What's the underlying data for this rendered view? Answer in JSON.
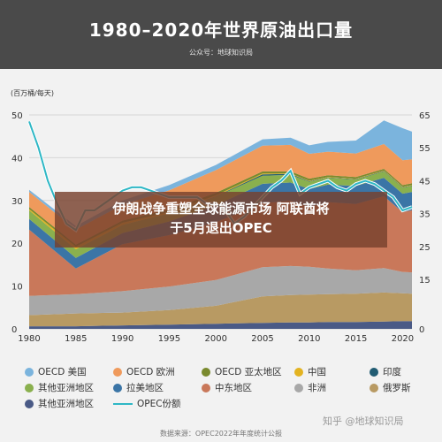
{
  "header": {
    "title": "1980–2020年世界原油出口量",
    "subtitle": "公众号：地球知识局"
  },
  "banner": {
    "line1": "伊朗战争重塑全球能源市场 阿联酋将",
    "line2": "于5月退出OPEC"
  },
  "footer": {
    "source": "数据来源：OPEC2022年年度统计公报",
    "watermark": "知乎 @地球知识局"
  },
  "chart_data": {
    "type": "area",
    "title": "1980–2020年世界原油出口量",
    "ylabel": "(百万桶/每天)",
    "ylim": [
      0,
      50
    ],
    "y2lim": [
      0,
      65
    ],
    "xlim": [
      1980,
      2021
    ],
    "yticks": [
      0,
      10,
      20,
      30,
      40,
      50
    ],
    "y2ticks": [
      0,
      15,
      25,
      35,
      45,
      55,
      65
    ],
    "xticks": [
      1980,
      1985,
      1990,
      1995,
      2000,
      2005,
      2010,
      2015,
      2020
    ],
    "x": [
      1980,
      1985,
      1990,
      1995,
      2000,
      2005,
      2008,
      2010,
      2012,
      2015,
      2018,
      2020,
      2021
    ],
    "series": [
      {
        "name": "其他亚洲地区",
        "color": "#4a5a86",
        "values": [
          0.6,
          0.6,
          0.8,
          1.0,
          1.2,
          1.4,
          1.5,
          1.5,
          1.6,
          1.6,
          1.7,
          1.8,
          1.8
        ]
      },
      {
        "name": "俄罗斯",
        "color": "#b89a63",
        "values": [
          2.6,
          3.0,
          3.0,
          3.4,
          4.2,
          6.2,
          6.4,
          6.5,
          6.5,
          6.6,
          6.8,
          6.5,
          6.4
        ]
      },
      {
        "name": "非洲",
        "color": "#a8a8a8",
        "values": [
          4.5,
          4.5,
          5.0,
          5.5,
          6.0,
          6.8,
          6.8,
          6.5,
          6.0,
          5.5,
          5.7,
          5.0,
          5.0
        ]
      },
      {
        "name": "中东地区",
        "color": "#c9785a",
        "values": [
          15.5,
          6.0,
          11.0,
          12.0,
          13.5,
          15.0,
          15.2,
          14.0,
          15.5,
          15.5,
          16.8,
          14.0,
          14.5
        ]
      },
      {
        "name": "拉美地区",
        "color": "#3b75a6",
        "values": [
          2.5,
          2.5,
          2.6,
          3.2,
          4.0,
          4.5,
          4.3,
          4.2,
          4.1,
          4.2,
          4.3,
          4.3,
          4.3
        ]
      },
      {
        "name": "其他亚洲地区（东南亚）",
        "color": "#8ab04e",
        "values": [
          2.0,
          2.0,
          1.9,
          1.9,
          2.0,
          1.9,
          1.8,
          1.7,
          1.6,
          1.5,
          1.5,
          1.4,
          1.4
        ]
      },
      {
        "name": "印度",
        "color": "#215c73",
        "values": [
          0.0,
          0.0,
          0.0,
          0.0,
          0.1,
          0.3,
          0.2,
          0.1,
          0.1,
          0.1,
          0.1,
          0.1,
          0.1
        ]
      },
      {
        "name": "中国",
        "color": "#e3b321",
        "values": [
          0.3,
          0.6,
          0.5,
          0.3,
          0.2,
          0.2,
          0.1,
          0.1,
          0.1,
          0.1,
          0.1,
          0.1,
          0.1
        ]
      },
      {
        "name": "OECD 亚太地区",
        "color": "#7a8a2e",
        "values": [
          0.5,
          0.5,
          0.5,
          0.6,
          0.6,
          0.5,
          0.5,
          0.5,
          0.4,
          0.4,
          0.4,
          0.4,
          0.4
        ]
      },
      {
        "name": "OECD 欧洲",
        "color": "#ef9a5c",
        "values": [
          3.5,
          3.5,
          3.7,
          4.5,
          5.3,
          6.0,
          6.2,
          5.8,
          5.5,
          5.5,
          5.8,
          5.8,
          5.6
        ]
      },
      {
        "name": "OECD 美国",
        "color": "#7bb4dd",
        "values": [
          0.5,
          0.8,
          1.0,
          1.2,
          1.2,
          1.5,
          1.7,
          2.0,
          2.3,
          3.0,
          5.5,
          7.5,
          6.5
        ]
      }
    ],
    "line_series": {
      "name": "OPEC份额",
      "color": "#2eb7c5",
      "x": [
        1980,
        1981,
        1982,
        1983,
        1984,
        1985,
        1986,
        1987,
        1988,
        1989,
        1990,
        1991,
        1992,
        1993,
        1994,
        1995,
        1996,
        1997,
        1998,
        1999,
        2000,
        2001,
        2002,
        2003,
        2004,
        2005,
        2006,
        2007,
        2008,
        2009,
        2010,
        2011,
        2012,
        2013,
        2014,
        2015,
        2016,
        2017,
        2018,
        2019,
        2020,
        2021
      ],
      "values": [
        63,
        55,
        45,
        38,
        32,
        30,
        36,
        36,
        38,
        40,
        42,
        43,
        43,
        42,
        41,
        40,
        40,
        40,
        40,
        38,
        38,
        36,
        32,
        34,
        37,
        40,
        43,
        45,
        48,
        41,
        43,
        44,
        45,
        43,
        42,
        44,
        45,
        44,
        42,
        40,
        36,
        37
      ]
    },
    "legend": [
      {
        "label": "OECD 美国",
        "color": "#7bb4dd",
        "kind": "dot"
      },
      {
        "label": "OECD 欧洲",
        "color": "#ef9a5c",
        "kind": "dot"
      },
      {
        "label": "OECD 亚太地区",
        "color": "#7a8a2e",
        "kind": "dot"
      },
      {
        "label": "中国",
        "color": "#e3b321",
        "kind": "dot"
      },
      {
        "label": "印度",
        "color": "#215c73",
        "kind": "dot"
      },
      {
        "label": "其他亚洲地区",
        "color": "#8ab04e",
        "kind": "dot"
      },
      {
        "label": "拉美地区",
        "color": "#3b75a6",
        "kind": "dot"
      },
      {
        "label": "中东地区",
        "color": "#c9785a",
        "kind": "dot"
      },
      {
        "label": "非洲",
        "color": "#a8a8a8",
        "kind": "dot"
      },
      {
        "label": "俄罗斯",
        "color": "#b89a63",
        "kind": "dot"
      },
      {
        "label": "其他亚洲地区",
        "color": "#4a5a86",
        "kind": "dot"
      },
      {
        "label": "OPEC份额",
        "color": "#2eb7c5",
        "kind": "line"
      }
    ]
  }
}
